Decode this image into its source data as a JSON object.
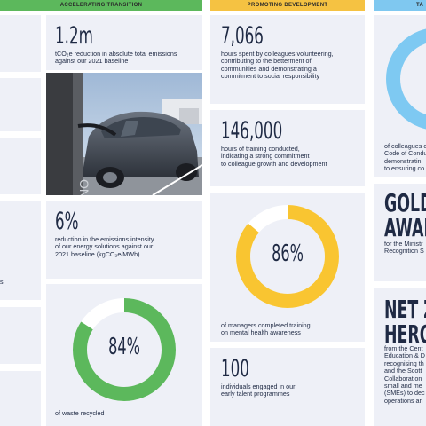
{
  "headers": {
    "accelerating": "ACCELERATING TRANSITION",
    "promoting": "PROMOTING DEVELOPMENT",
    "third": "TA"
  },
  "colors": {
    "green_header": "#5cb85c",
    "yellow_header": "#f5c242",
    "blue_header": "#7fc8f0",
    "green": "#5cb85c",
    "yellow": "#f9c531",
    "blue": "#7ec9f2",
    "card": "#eef0f7",
    "text": "#1f2a44"
  },
  "col1": {
    "stat1_value": "1.2m",
    "stat1_text": [
      "tCO₂e reduction in absolute total emissions",
      "against our 2021 baseline"
    ],
    "photo_text": "ONT",
    "stat2_value": "6%",
    "stat2_text": [
      "reduction in the emissions intensity",
      "of our energy solutions against our",
      "2021 baseline (kgCO₂e/MWh)"
    ],
    "donut_value": "84%",
    "donut_percent": 84,
    "donut_text": "of waste recycled"
  },
  "col0": {
    "partial_text": "s"
  },
  "col2": {
    "stat1_value": "7,066",
    "stat1_text": [
      "hours spent by colleagues volunteering,",
      "contributing to the betterment of",
      "communities and demonstrating a",
      "commitment to social responsibility"
    ],
    "stat2_value": "146,000",
    "stat2_text": [
      "hours of training conducted,",
      "indicating a strong commitment",
      "to colleague growth and development"
    ],
    "donut_value": "86%",
    "donut_percent": 86,
    "donut_text": [
      "of managers completed training",
      "on mental health awareness"
    ],
    "stat3_value": "100",
    "stat3_text": [
      "individuals engaged in our",
      "early talent programmes"
    ]
  },
  "col3": {
    "donut_text": [
      "of colleagues c",
      "Code of Condu",
      "demonstratin",
      "to ensuring co"
    ],
    "gold_title": [
      "GOLD",
      "AWAR"
    ],
    "gold_text": [
      "for the Ministr",
      "Recognition S"
    ],
    "net_title": [
      "NET Z",
      "HERO"
    ],
    "net_text": [
      "from the Cent",
      "Education & D",
      "recognising th",
      "and the Scott",
      "Collaboration",
      "small and me",
      "(SMEs) to dec",
      "operations an"
    ]
  }
}
